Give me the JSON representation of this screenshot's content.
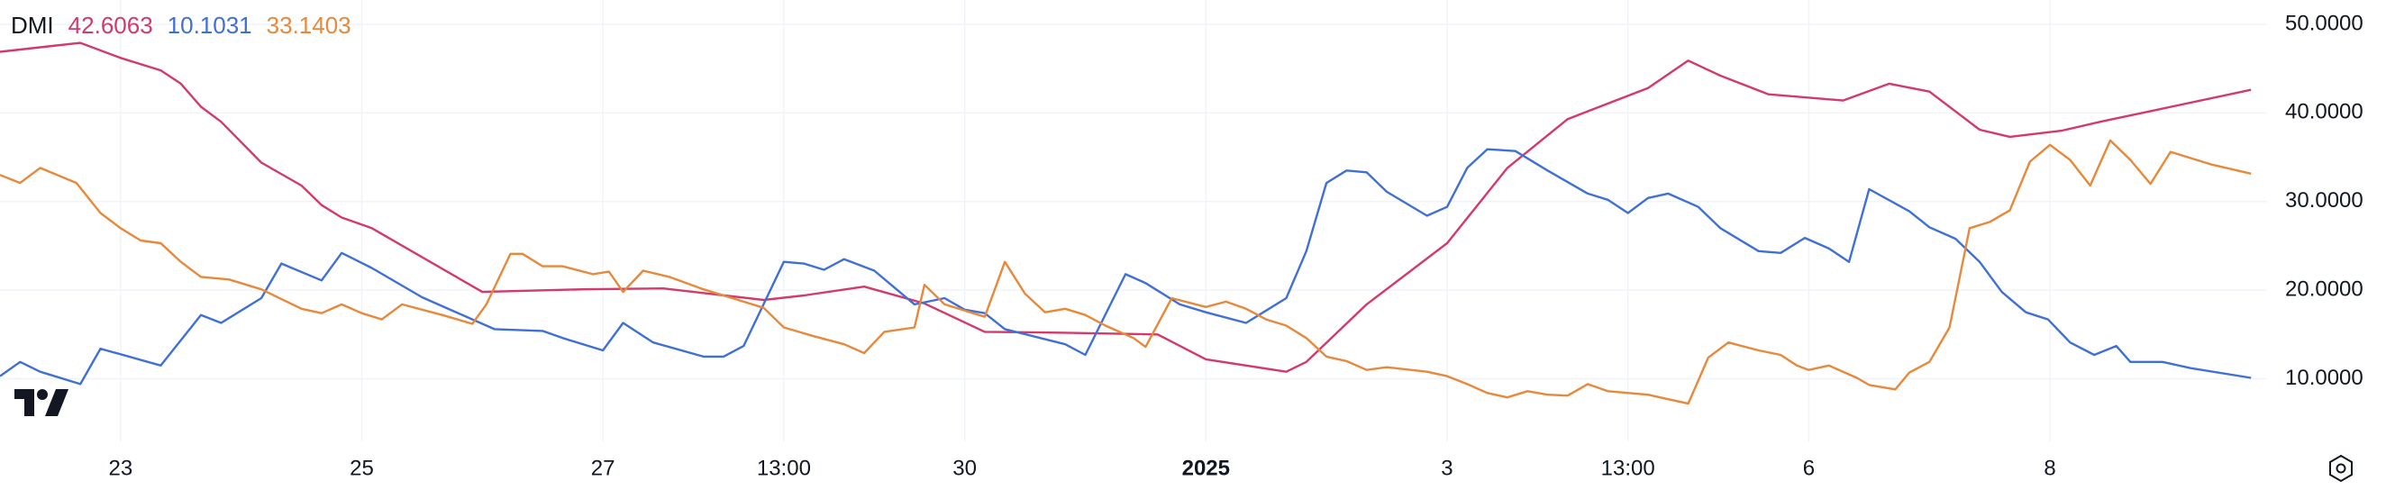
{
  "chart_data": {
    "type": "line",
    "title": "DMI",
    "xlim": [
      0,
      112.8
    ],
    "xticks": [
      {
        "value": 6,
        "label": "23"
      },
      {
        "value": 18,
        "label": "25"
      },
      {
        "value": 30,
        "label": "27"
      },
      {
        "value": 39,
        "label": "13:00"
      },
      {
        "value": 48,
        "label": "30"
      },
      {
        "value": 60,
        "label": "2025"
      },
      {
        "value": 72,
        "label": "3"
      },
      {
        "value": 81,
        "label": "13:00"
      },
      {
        "value": 90,
        "label": "6"
      },
      {
        "value": 102,
        "label": "8"
      }
    ],
    "ylim": [
      2.94,
      52.74
    ],
    "yticks": [
      {
        "value": 10,
        "label": "10.0000"
      },
      {
        "value": 20,
        "label": "20.0000"
      },
      {
        "value": 30,
        "label": "30.0000"
      },
      {
        "value": 40,
        "label": "40.0000"
      },
      {
        "value": 50,
        "label": "50.0000"
      }
    ],
    "grid": true,
    "series": [
      {
        "color": "#d33a6a",
        "x": [
          0,
          2,
          4,
          6,
          8,
          9,
          10,
          11,
          13,
          15,
          16,
          17,
          18.5,
          24,
          29,
          33,
          38,
          40,
          43,
          46,
          49,
          53,
          57.6,
          60,
          64,
          65,
          68,
          72,
          75,
          78,
          82,
          84,
          85.6,
          88,
          91.7,
          94,
          96,
          98.5,
          100,
          102.6,
          104.5,
          107,
          112
        ],
        "values": [
          46.9,
          47.4,
          47.9,
          46.2,
          44.8,
          43.3,
          40.7,
          39,
          34.4,
          31.8,
          29.6,
          28.2,
          27,
          19.8,
          20.1,
          20.2,
          18.9,
          19.4,
          20.4,
          18.5,
          15.3,
          15.2,
          15,
          12.2,
          10.8,
          11.9,
          18.4,
          25.3,
          33.8,
          39.3,
          42.8,
          45.9,
          44.2,
          42.1,
          41.4,
          43.3,
          42.4,
          38.1,
          37.3,
          38,
          39,
          40.2,
          42.6063
        ]
      },
      {
        "color": "#3f6fd8",
        "x": [
          0,
          1,
          2,
          4,
          5,
          8,
          10,
          11,
          13,
          14,
          16,
          17,
          18.5,
          21,
          24.6,
          27,
          28,
          30,
          31,
          32.5,
          35,
          36,
          37,
          39,
          40,
          41,
          42,
          43.5,
          45.5,
          47,
          48,
          49,
          50,
          53,
          54,
          56,
          57,
          58.7,
          60,
          62,
          64,
          65,
          66,
          67,
          68,
          69,
          71,
          72,
          73,
          74,
          75.4,
          77,
          79,
          80,
          81,
          82,
          83,
          84.5,
          85.6,
          87.5,
          88.6,
          89.8,
          91,
          92,
          93,
          95,
          96,
          97.3,
          98.5,
          99.6,
          100.8,
          101.9,
          103,
          104.2,
          105.3,
          106,
          107.6,
          109,
          112
        ],
        "values": [
          10.3,
          11.9,
          10.8,
          9.4,
          13.4,
          11.5,
          17.2,
          16.3,
          19.1,
          23,
          21.1,
          24.2,
          22.5,
          19.2,
          15.6,
          15.4,
          14.6,
          13.2,
          16.3,
          14.1,
          12.5,
          12.5,
          13.7,
          23.2,
          23,
          22.3,
          23.5,
          22.2,
          18.4,
          19.1,
          17.8,
          17.4,
          15.6,
          13.9,
          12.7,
          21.8,
          20.8,
          18.4,
          17.5,
          16.3,
          19.1,
          24.4,
          32.1,
          33.5,
          33.3,
          31.1,
          28.4,
          29.4,
          33.8,
          35.9,
          35.7,
          33.5,
          30.9,
          30.2,
          28.7,
          30.4,
          30.9,
          29.4,
          27,
          24.4,
          24.2,
          25.9,
          24.7,
          23.2,
          31.4,
          28.9,
          27.1,
          25.8,
          23.2,
          19.8,
          17.5,
          16.7,
          14.1,
          12.7,
          13.7,
          11.9,
          11.9,
          11.2,
          10.1031
        ]
      },
      {
        "color": "#e8883a",
        "x": [
          0,
          1,
          2,
          3.8,
          5,
          6,
          7,
          8,
          9,
          10,
          11.4,
          13,
          15,
          16,
          17,
          18,
          19,
          20,
          22,
          23.5,
          24.2,
          25.4,
          26,
          27,
          28,
          29.5,
          30.3,
          31,
          32,
          33.3,
          35,
          37,
          38,
          39,
          40.5,
          42,
          43,
          44,
          45.5,
          46,
          47,
          49,
          50,
          51,
          52,
          53,
          54,
          55,
          56.4,
          57,
          58.3,
          60,
          61,
          62,
          63,
          64,
          65,
          66,
          67,
          68,
          69,
          71,
          72,
          73,
          74,
          75,
          76,
          77,
          78,
          79,
          80,
          82,
          83,
          84,
          85,
          86,
          87.5,
          88.6,
          89.4,
          90,
          91,
          92.4,
          93,
          94.3,
          95,
          96,
          97,
          98,
          99,
          100,
          101,
          102,
          103,
          104,
          105,
          106,
          107,
          108,
          109,
          110,
          112
        ],
        "values": [
          33,
          32.1,
          33.8,
          32.1,
          28.7,
          27,
          25.6,
          25.3,
          23.2,
          21.5,
          21.2,
          20.1,
          17.9,
          17.4,
          18.4,
          17.4,
          16.7,
          18.4,
          17.2,
          16.2,
          18.4,
          24.1,
          24.1,
          22.7,
          22.7,
          21.8,
          22.1,
          19.8,
          22.2,
          21.5,
          20.1,
          18.7,
          18,
          15.8,
          14.8,
          13.9,
          12.9,
          15.3,
          15.8,
          20.6,
          18.4,
          17,
          23.2,
          19.6,
          17.5,
          17.9,
          17.2,
          16,
          14.6,
          13.6,
          19.1,
          18.1,
          18.7,
          17.9,
          16.7,
          16,
          14.6,
          12.5,
          12,
          11,
          11.3,
          10.8,
          10.3,
          9.4,
          8.4,
          7.9,
          8.6,
          8.2,
          8.1,
          9.4,
          8.6,
          8.2,
          7.7,
          7.2,
          12.4,
          14.1,
          13.2,
          12.7,
          11.5,
          11,
          11.5,
          10.1,
          9.3,
          8.8,
          10.7,
          11.9,
          15.8,
          27,
          27.7,
          29,
          34.5,
          36.4,
          34.7,
          31.8,
          36.9,
          34.7,
          32,
          35.6,
          34.9,
          34.2,
          33.1403
        ]
      }
    ]
  }
}
